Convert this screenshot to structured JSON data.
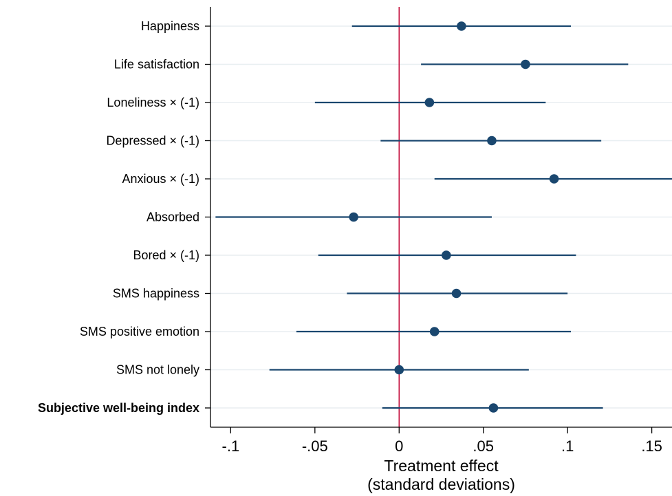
{
  "chart_data": {
    "type": "scatter",
    "orientation": "horizontal-coefficient-plot",
    "xlabel_line1": "Treatment effect",
    "xlabel_line2": "(standard deviations)",
    "xlim": [
      -0.112,
      0.162
    ],
    "xticks": [
      {
        "value": -0.1,
        "label": "-.1"
      },
      {
        "value": -0.05,
        "label": "-.05"
      },
      {
        "value": 0,
        "label": "0"
      },
      {
        "value": 0.05,
        "label": ".05"
      },
      {
        "value": 0.1,
        "label": ".1"
      },
      {
        "value": 0.15,
        "label": ".15"
      }
    ],
    "reference_line": 0,
    "grid": true,
    "colors": {
      "point": "#1a476f",
      "ci_line": "#1a476f",
      "reference_line": "#c10534",
      "grid": "#e8eef1"
    },
    "series": [
      {
        "points": [
          {
            "label": "Happiness",
            "estimate": 0.037,
            "ci_low": -0.028,
            "ci_high": 0.102,
            "bold": false
          },
          {
            "label": "Life satisfaction",
            "estimate": 0.075,
            "ci_low": 0.013,
            "ci_high": 0.136,
            "bold": false
          },
          {
            "label": "Loneliness × (-1)",
            "estimate": 0.018,
            "ci_low": -0.05,
            "ci_high": 0.087,
            "bold": false
          },
          {
            "label": "Depressed × (-1)",
            "estimate": 0.055,
            "ci_low": -0.011,
            "ci_high": 0.12,
            "bold": false
          },
          {
            "label": "Anxious × (-1)",
            "estimate": 0.092,
            "ci_low": 0.021,
            "ci_high": 0.162,
            "bold": false
          },
          {
            "label": "Absorbed",
            "estimate": -0.027,
            "ci_low": -0.109,
            "ci_high": 0.055,
            "bold": false
          },
          {
            "label": "Bored × (-1)",
            "estimate": 0.028,
            "ci_low": -0.048,
            "ci_high": 0.105,
            "bold": false
          },
          {
            "label": "SMS happiness",
            "estimate": 0.034,
            "ci_low": -0.031,
            "ci_high": 0.1,
            "bold": false
          },
          {
            "label": "SMS positive emotion",
            "estimate": 0.021,
            "ci_low": -0.061,
            "ci_high": 0.102,
            "bold": false
          },
          {
            "label": "SMS not lonely",
            "estimate": 0.0,
            "ci_low": -0.077,
            "ci_high": 0.077,
            "bold": false
          },
          {
            "label": "Subjective well-being index",
            "estimate": 0.056,
            "ci_low": -0.01,
            "ci_high": 0.121,
            "bold": true
          }
        ]
      }
    ]
  }
}
